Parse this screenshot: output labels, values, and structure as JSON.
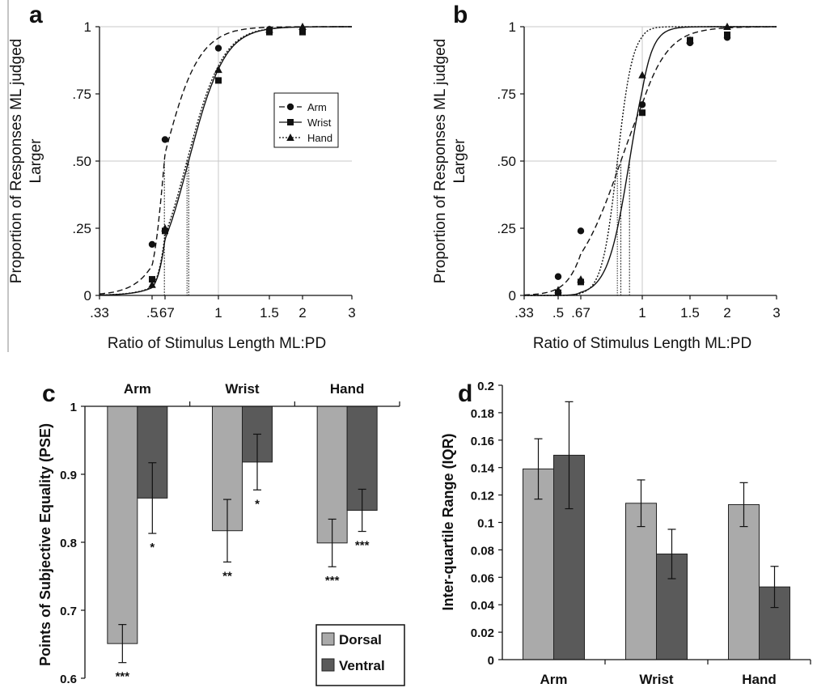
{
  "chart_data": [
    {
      "panel": "a",
      "type": "line",
      "ylabel": "Proportion of Responses ML judged Larger",
      "xlabel": "Ratio of Stimulus Length  ML:PD",
      "x_ticks": [
        ".33",
        ".5",
        ".67",
        "1",
        "1.5",
        "2",
        "3"
      ],
      "y_ticks": [
        "0",
        ".25",
        ".50",
        ".75",
        "1"
      ],
      "x_scale": "log",
      "xlim": [
        0.33,
        3
      ],
      "ylim": [
        0,
        1
      ],
      "legend": {
        "position": "right-middle",
        "entries": [
          "Arm",
          "Wrist",
          "Hand"
        ]
      },
      "series": [
        {
          "name": "Arm",
          "marker": "circle",
          "line": "dashed",
          "pse": 0.66,
          "slope": 7.5,
          "x": [
            0.5,
            0.67,
            1,
            1.5,
            2
          ],
          "y": [
            0.19,
            0.58,
            0.92,
            0.99,
            0.99
          ]
        },
        {
          "name": "Wrist",
          "marker": "square",
          "line": "solid",
          "pse": 0.8,
          "slope": 7.5,
          "x": [
            0.5,
            0.67,
            1,
            1.5,
            2
          ],
          "y": [
            0.06,
            0.24,
            0.8,
            0.98,
            0.98
          ]
        },
        {
          "name": "Hand",
          "marker": "triangle",
          "line": "dotted",
          "pse": 0.79,
          "slope": 7.5,
          "x": [
            0.5,
            0.67,
            1,
            1.5,
            2
          ],
          "y": [
            0.04,
            0.25,
            0.84,
            0.99,
            1.0
          ]
        }
      ]
    },
    {
      "panel": "b",
      "type": "line",
      "ylabel": "Proportion of Responses ML judged Larger",
      "xlabel": "Ratio of Stimulus Length  ML:PD",
      "x_ticks": [
        ".33",
        ".5",
        ".67",
        "1",
        "1.5",
        "2",
        "3"
      ],
      "y_ticks": [
        "0",
        ".25",
        ".50",
        ".75",
        "1"
      ],
      "x_scale": "log",
      "xlim": [
        0.33,
        3
      ],
      "ylim": [
        0,
        1
      ],
      "series": [
        {
          "name": "Arm",
          "marker": "circle",
          "line": "dashed",
          "pse": 0.87,
          "slope": 6.5,
          "x": [
            0.5,
            0.67,
            1,
            1.5,
            2
          ],
          "y": [
            0.07,
            0.24,
            0.71,
            0.94,
            0.96
          ]
        },
        {
          "name": "Wrist",
          "marker": "square",
          "line": "solid",
          "pse": 0.92,
          "slope": 14,
          "x": [
            0.5,
            0.67,
            1,
            1.5,
            2
          ],
          "y": [
            0.01,
            0.05,
            0.68,
            0.95,
            0.97
          ]
        },
        {
          "name": "Hand",
          "marker": "triangle",
          "line": "dotted",
          "pse": 0.85,
          "slope": 20,
          "x": [
            0.5,
            0.67,
            1,
            1.5,
            2
          ],
          "y": [
            0.02,
            0.06,
            0.82,
            0.95,
            1.0
          ]
        }
      ]
    },
    {
      "panel": "c",
      "type": "bar",
      "ylabel": "Points of Subjective Equality (PSE)",
      "categories": [
        "Arm",
        "Wrist",
        "Hand"
      ],
      "y_ticks": [
        "0.6",
        "0.7",
        "0.8",
        "0.9",
        "1"
      ],
      "ylim": [
        0.6,
        1
      ],
      "bars_hang_from": 1,
      "legend": {
        "position": "bottom-right",
        "entries": [
          "Dorsal",
          "Ventral"
        ]
      },
      "series": [
        {
          "name": "Dorsal",
          "color": "#aaaaaa",
          "values": [
            0.651,
            0.817,
            0.799
          ],
          "error": [
            0.028,
            0.046,
            0.035
          ],
          "significance": [
            "***",
            "**",
            "***"
          ]
        },
        {
          "name": "Ventral",
          "color": "#5a5a5a",
          "values": [
            0.865,
            0.918,
            0.847
          ],
          "error": [
            0.052,
            0.041,
            0.031
          ],
          "significance": [
            "*",
            "*",
            "***"
          ]
        }
      ]
    },
    {
      "panel": "d",
      "type": "bar",
      "ylabel": "Inter-quartile Range (IQR)",
      "categories": [
        "Arm",
        "Wrist",
        "Hand"
      ],
      "y_ticks": [
        "0",
        "0.02",
        "0.04",
        "0.06",
        "0.08",
        "0.1",
        "0.12",
        "0.14",
        "0.16",
        "0.18",
        "0.2"
      ],
      "ylim": [
        0,
        0.2
      ],
      "series": [
        {
          "name": "Dorsal",
          "color": "#aaaaaa",
          "values": [
            0.139,
            0.114,
            0.113
          ],
          "error": [
            0.022,
            0.017,
            0.016
          ]
        },
        {
          "name": "Ventral",
          "color": "#5a5a5a",
          "values": [
            0.149,
            0.077,
            0.053
          ],
          "error": [
            0.039,
            0.018,
            0.015
          ]
        }
      ]
    }
  ]
}
